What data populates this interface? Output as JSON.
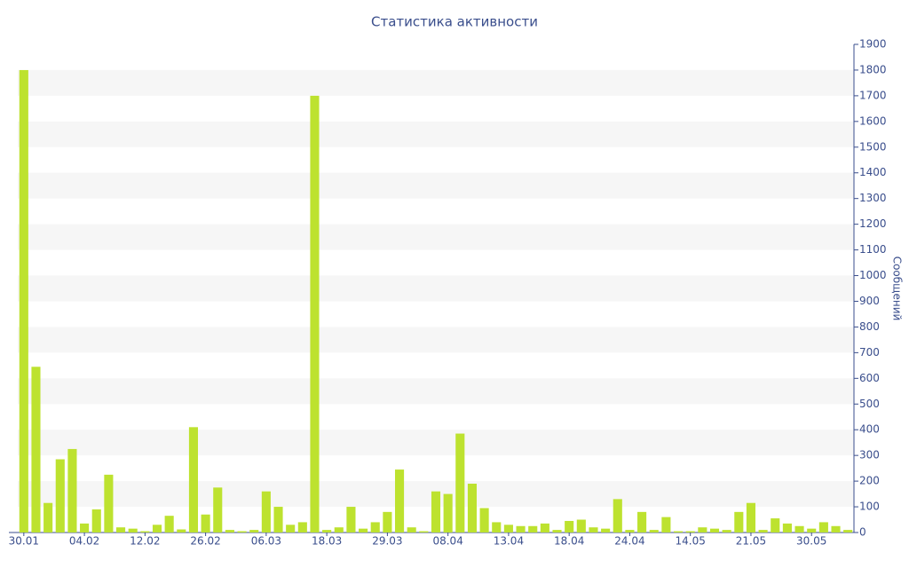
{
  "chart_data": {
    "type": "bar",
    "title": "Статистика активности",
    "y_axis_label": "Сообщений",
    "categories": [
      "30.01",
      null,
      null,
      null,
      null,
      "04.02",
      null,
      null,
      null,
      null,
      "12.02",
      null,
      null,
      null,
      null,
      "26.02",
      null,
      null,
      null,
      null,
      "06.03",
      null,
      null,
      null,
      null,
      "18.03",
      null,
      null,
      null,
      null,
      "29.03",
      null,
      null,
      null,
      null,
      "08.04",
      null,
      null,
      null,
      null,
      "13.04",
      null,
      null,
      null,
      null,
      "18.04",
      null,
      null,
      null,
      null,
      "24.04",
      null,
      null,
      null,
      null,
      "14.05",
      null,
      null,
      null,
      null,
      "21.05",
      null,
      null,
      null,
      null,
      "30.05",
      null,
      null,
      null
    ],
    "values": [
      1800,
      645,
      115,
      285,
      325,
      35,
      90,
      225,
      20,
      15,
      5,
      30,
      65,
      12,
      410,
      70,
      175,
      10,
      5,
      10,
      160,
      100,
      30,
      40,
      1700,
      10,
      20,
      100,
      15,
      40,
      80,
      245,
      20,
      5,
      160,
      150,
      385,
      190,
      95,
      40,
      30,
      25,
      25,
      35,
      10,
      45,
      50,
      20,
      15,
      130,
      10,
      80,
      10,
      60,
      5,
      5,
      20,
      15,
      10,
      80,
      115,
      10,
      55,
      35,
      25,
      15,
      40,
      25,
      10
    ],
    "color": "#bde22f",
    "ylim": [
      0,
      1900
    ],
    "yticks": [
      0,
      100,
      200,
      300,
      400,
      500,
      600,
      700,
      800,
      900,
      1000,
      1100,
      1200,
      1300,
      1400,
      1500,
      1600,
      1700,
      1800,
      1900
    ],
    "y_axis_side": "right",
    "grid": true
  }
}
